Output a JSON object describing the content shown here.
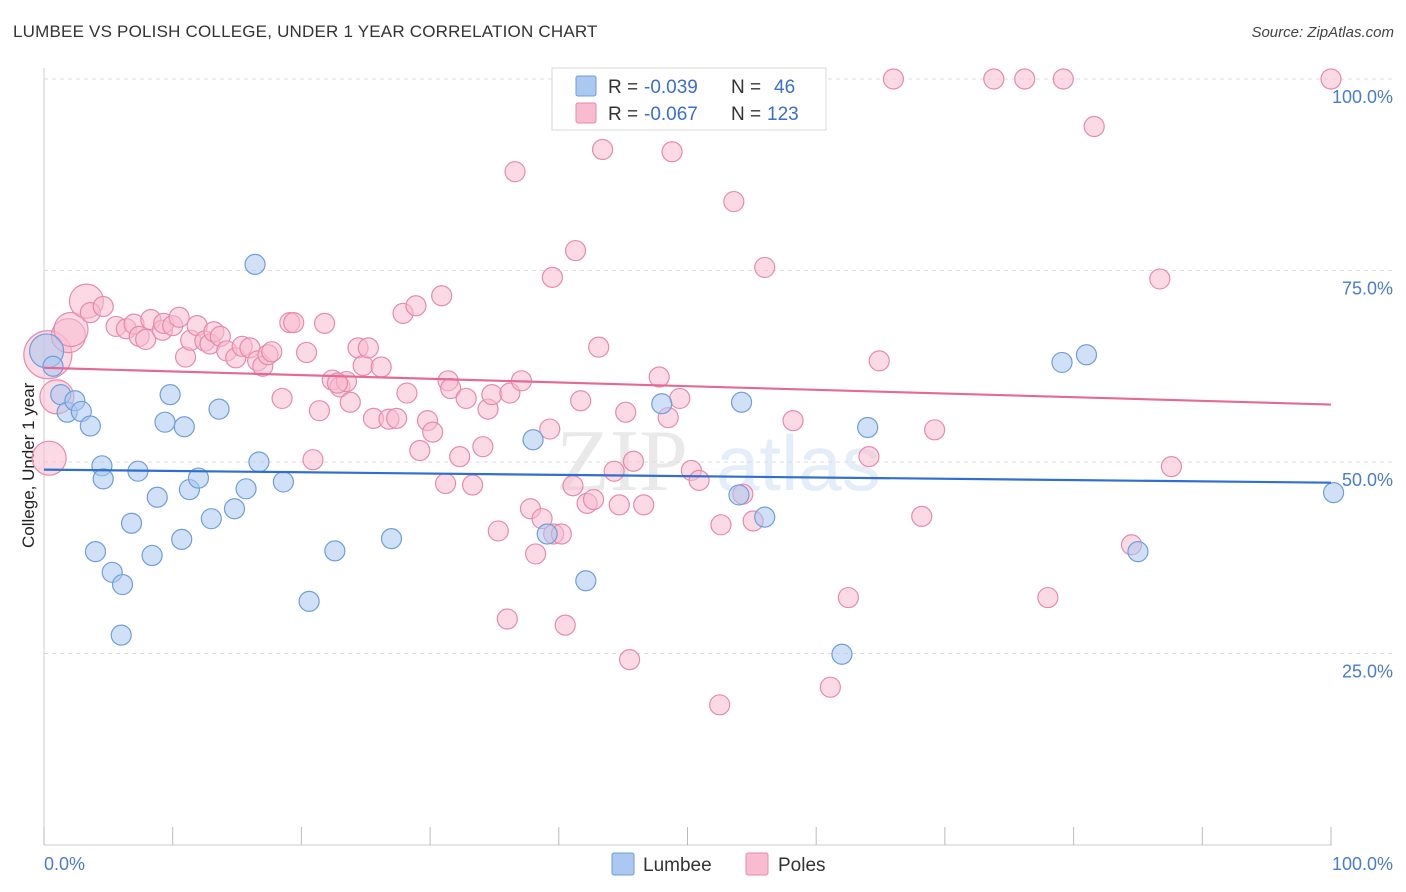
{
  "title": "LUMBEE VS POLISH COLLEGE, UNDER 1 YEAR CORRELATION CHART",
  "source": "Source: ZipAtlas.com",
  "watermark": {
    "zip": "ZIP",
    "atlas": "atlas"
  },
  "colors": {
    "lumbee_fill": "#aac8f0",
    "lumbee_stroke": "#6f9edc",
    "lumbee_line": "#2f6fcf",
    "poles_fill": "#f7bcd0",
    "poles_stroke": "#e88aab",
    "poles_line": "#e46a95",
    "grid": "#dddddd",
    "tick_text": "#4a7cc9"
  },
  "stats": {
    "r_label": "R =",
    "n_label": "N =",
    "lumbee": {
      "r": "-0.039",
      "n": "46"
    },
    "poles": {
      "r": "-0.067",
      "n": "123"
    }
  },
  "chart_data": {
    "type": "scatter",
    "xlabel": "",
    "ylabel": "College, Under 1 year",
    "xlim": [
      0,
      100
    ],
    "ylim": [
      0,
      100
    ],
    "x_tick_labels": [
      "0.0%",
      "100.0%"
    ],
    "y_tick_labels": [
      "25.0%",
      "50.0%",
      "75.0%",
      "100.0%"
    ],
    "y_ticks": [
      25,
      50,
      75,
      100
    ],
    "grid": true,
    "legend_placement": "bottom-center",
    "series": [
      {
        "name": "Lumbee",
        "trend": [
          [
            0,
            49.0
          ],
          [
            100,
            47.3
          ]
        ],
        "points": [
          [
            0.2,
            64.5,
            1
          ],
          [
            1.3,
            58.8,
            0
          ],
          [
            1.8,
            56.5,
            0
          ],
          [
            2.4,
            58.0,
            0
          ],
          [
            2.9,
            56.6,
            0
          ],
          [
            3.6,
            54.7,
            0
          ],
          [
            4.0,
            38.3,
            0
          ],
          [
            4.5,
            49.5,
            0
          ],
          [
            4.6,
            47.8,
            0
          ],
          [
            5.3,
            35.6,
            0
          ],
          [
            6.1,
            34.0,
            0
          ],
          [
            6.0,
            27.4,
            0
          ],
          [
            6.8,
            42.0,
            0
          ],
          [
            7.3,
            48.8,
            0
          ],
          [
            8.4,
            37.8,
            0
          ],
          [
            8.8,
            45.4,
            0
          ],
          [
            9.4,
            55.2,
            0
          ],
          [
            9.8,
            58.8,
            0
          ],
          [
            10.9,
            54.6,
            0
          ],
          [
            10.7,
            39.9,
            0
          ],
          [
            11.3,
            46.4,
            0
          ],
          [
            12.0,
            47.9,
            0
          ],
          [
            13.0,
            42.6,
            0
          ],
          [
            13.6,
            56.9,
            0
          ],
          [
            14.8,
            43.9,
            0
          ],
          [
            15.7,
            46.5,
            0
          ],
          [
            16.4,
            75.8,
            0
          ],
          [
            16.7,
            50.0,
            0
          ],
          [
            18.6,
            47.4,
            0
          ],
          [
            20.6,
            31.8,
            0
          ],
          [
            22.6,
            38.4,
            0
          ],
          [
            27.0,
            40.0,
            0
          ],
          [
            38.0,
            52.9,
            0
          ],
          [
            39.1,
            40.6,
            0
          ],
          [
            42.1,
            34.5,
            0
          ],
          [
            48.0,
            57.6,
            0
          ],
          [
            54.0,
            45.7,
            0
          ],
          [
            54.2,
            57.8,
            0
          ],
          [
            56.0,
            42.8,
            0
          ],
          [
            62.0,
            24.9,
            0
          ],
          [
            64.0,
            54.5,
            0
          ],
          [
            79.1,
            63.0,
            0
          ],
          [
            81.0,
            64.0,
            0
          ],
          [
            85.0,
            38.3,
            0
          ],
          [
            100.2,
            46.0,
            0
          ],
          [
            0.7,
            62.5,
            0
          ]
        ]
      },
      {
        "name": "Poles",
        "trend": [
          [
            0,
            62.3
          ],
          [
            100,
            57.5
          ]
        ],
        "points": [
          [
            0.3,
            64.0,
            2
          ],
          [
            0.4,
            50.5,
            1
          ],
          [
            1.0,
            58.5,
            1
          ],
          [
            1.9,
            66.5,
            1
          ],
          [
            2.1,
            67.3,
            1
          ],
          [
            3.3,
            71.0,
            1
          ],
          [
            3.6,
            69.5,
            0
          ],
          [
            4.6,
            70.3,
            0
          ],
          [
            5.6,
            67.7,
            0
          ],
          [
            6.4,
            67.4,
            0
          ],
          [
            7.0,
            68.0,
            0
          ],
          [
            7.4,
            66.4,
            0
          ],
          [
            7.9,
            66.0,
            0
          ],
          [
            8.3,
            68.6,
            0
          ],
          [
            9.2,
            67.2,
            0
          ],
          [
            9.3,
            68.1,
            0
          ],
          [
            10.0,
            67.8,
            0
          ],
          [
            10.5,
            68.9,
            0
          ],
          [
            11.0,
            63.7,
            0
          ],
          [
            11.4,
            65.9,
            0
          ],
          [
            11.9,
            67.8,
            0
          ],
          [
            12.5,
            65.8,
            0
          ],
          [
            12.9,
            65.4,
            0
          ],
          [
            13.2,
            67.0,
            0
          ],
          [
            13.7,
            66.4,
            0
          ],
          [
            14.2,
            64.5,
            0
          ],
          [
            14.9,
            63.6,
            0
          ],
          [
            15.4,
            65.1,
            0
          ],
          [
            16.0,
            64.9,
            0
          ],
          [
            16.6,
            63.2,
            0
          ],
          [
            17.0,
            62.5,
            0
          ],
          [
            17.4,
            64.0,
            0
          ],
          [
            17.7,
            64.4,
            0
          ],
          [
            18.5,
            58.3,
            0
          ],
          [
            19.1,
            68.2,
            0
          ],
          [
            19.4,
            68.2,
            0
          ],
          [
            20.4,
            64.3,
            0
          ],
          [
            20.9,
            50.3,
            0
          ],
          [
            21.4,
            56.7,
            0
          ],
          [
            21.8,
            68.1,
            0
          ],
          [
            22.4,
            60.7,
            0
          ],
          [
            23.0,
            59.8,
            0
          ],
          [
            23.5,
            60.5,
            0
          ],
          [
            23.8,
            57.8,
            0
          ],
          [
            24.4,
            64.9,
            0
          ],
          [
            24.8,
            62.6,
            0
          ],
          [
            25.2,
            64.9,
            0
          ],
          [
            25.6,
            55.7,
            0
          ],
          [
            26.2,
            62.4,
            0
          ],
          [
            26.8,
            55.6,
            0
          ],
          [
            27.4,
            55.7,
            0
          ],
          [
            27.9,
            69.4,
            0
          ],
          [
            28.2,
            59.0,
            0
          ],
          [
            28.9,
            70.4,
            0
          ],
          [
            29.2,
            51.5,
            0
          ],
          [
            29.8,
            55.4,
            0
          ],
          [
            30.2,
            53.9,
            0
          ],
          [
            30.9,
            71.7,
            0
          ],
          [
            31.4,
            60.6,
            0
          ],
          [
            31.6,
            59.6,
            0
          ],
          [
            32.3,
            50.7,
            0
          ],
          [
            32.8,
            58.3,
            0
          ],
          [
            33.3,
            47.0,
            0
          ],
          [
            34.1,
            52.0,
            0
          ],
          [
            34.5,
            56.9,
            0
          ],
          [
            34.8,
            58.8,
            0
          ],
          [
            35.3,
            41.0,
            0
          ],
          [
            36.2,
            59.0,
            0
          ],
          [
            36.6,
            87.9,
            0
          ],
          [
            37.1,
            60.6,
            0
          ],
          [
            37.8,
            43.9,
            0
          ],
          [
            38.2,
            38.0,
            0
          ],
          [
            38.7,
            42.6,
            0
          ],
          [
            39.3,
            54.3,
            0
          ],
          [
            39.6,
            40.6,
            0
          ],
          [
            39.5,
            74.1,
            0
          ],
          [
            40.2,
            40.6,
            0
          ],
          [
            41.1,
            46.9,
            0
          ],
          [
            41.3,
            77.6,
            0
          ],
          [
            41.7,
            58.0,
            0
          ],
          [
            42.2,
            44.6,
            0
          ],
          [
            42.7,
            45.1,
            0
          ],
          [
            43.1,
            65.0,
            0
          ],
          [
            43.4,
            90.8,
            0
          ],
          [
            44.3,
            48.8,
            0
          ],
          [
            44.7,
            44.4,
            0
          ],
          [
            45.2,
            56.5,
            0
          ],
          [
            45.8,
            50.1,
            0
          ],
          [
            46.6,
            44.4,
            0
          ],
          [
            47.8,
            61.1,
            0
          ],
          [
            48.5,
            55.8,
            0
          ],
          [
            48.8,
            90.5,
            0
          ],
          [
            49.4,
            58.3,
            0
          ],
          [
            50.3,
            48.9,
            0
          ],
          [
            50.9,
            47.6,
            0
          ],
          [
            52.6,
            41.8,
            0
          ],
          [
            53.6,
            84.0,
            0
          ],
          [
            54.3,
            45.8,
            0
          ],
          [
            55.1,
            42.3,
            0
          ],
          [
            56.0,
            75.4,
            0
          ],
          [
            58.2,
            55.4,
            0
          ],
          [
            61.1,
            20.6,
            0
          ],
          [
            62.5,
            32.3,
            0
          ],
          [
            64.1,
            50.7,
            0
          ],
          [
            64.9,
            63.2,
            0
          ],
          [
            66.0,
            100.0,
            0
          ],
          [
            68.2,
            42.9,
            0
          ],
          [
            69.2,
            54.2,
            0
          ],
          [
            73.8,
            100.0,
            0
          ],
          [
            76.2,
            100.0,
            0
          ],
          [
            78.0,
            32.3,
            0
          ],
          [
            79.2,
            100.0,
            0
          ],
          [
            81.6,
            93.8,
            0
          ],
          [
            84.5,
            39.2,
            0
          ],
          [
            86.7,
            73.9,
            0
          ],
          [
            87.6,
            49.4,
            0
          ],
          [
            100.0,
            100.0,
            0
          ],
          [
            45.5,
            24.2,
            0
          ],
          [
            36.0,
            29.5,
            0
          ],
          [
            40.5,
            28.7,
            0
          ],
          [
            52.5,
            18.3,
            0
          ],
          [
            31.2,
            47.2,
            0
          ],
          [
            22.8,
            60.3,
            0
          ]
        ]
      }
    ]
  }
}
